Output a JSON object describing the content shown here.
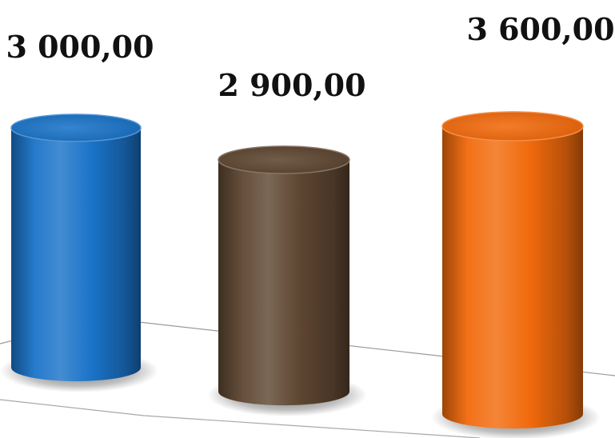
{
  "chart_data": {
    "type": "bar",
    "style": "3d-cylinder",
    "categories": [
      "",
      "",
      ""
    ],
    "values": [
      3000,
      2900,
      3600
    ],
    "data_labels": [
      "3 000,00",
      "2 900,00",
      "3 600,00"
    ],
    "colors": [
      "#1a73c8",
      "#5e4631",
      "#f26a0c"
    ],
    "title": "",
    "xlabel": "",
    "ylabel": "",
    "grid": false,
    "legend": "none"
  }
}
